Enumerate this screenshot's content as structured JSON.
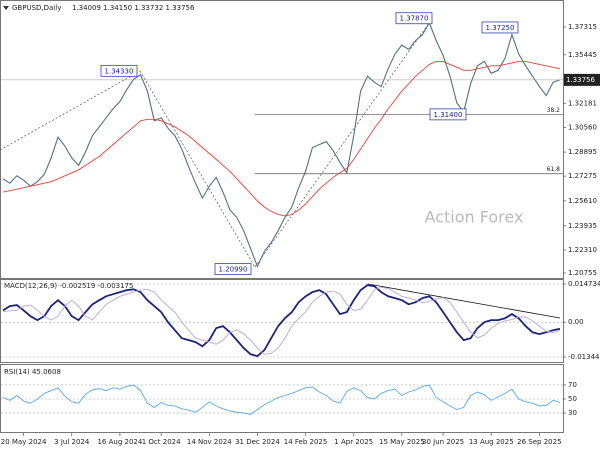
{
  "chart_data": [
    {
      "type": "line",
      "title": "GBPUSD,Daily",
      "subtitle": "1.34009 1.34150 1.33732 1.33756",
      "watermark": "Action Forex",
      "series": [
        {
          "color": "#4f7189",
          "values": [
            1.271,
            1.268,
            1.273,
            1.27,
            1.266,
            1.269,
            1.274,
            1.285,
            1.299,
            1.293,
            1.285,
            1.28,
            1.289,
            1.3,
            1.306,
            1.312,
            1.318,
            1.323,
            1.331,
            1.338,
            1.341,
            1.33,
            1.31,
            1.312,
            1.305,
            1.3,
            1.291,
            1.279,
            1.268,
            1.258,
            1.266,
            1.272,
            1.262,
            1.25,
            1.245,
            1.236,
            1.224,
            1.212,
            1.222,
            1.228,
            1.236,
            1.245,
            1.252,
            1.265,
            1.276,
            1.292,
            1.294,
            1.296,
            1.29,
            1.282,
            1.275,
            1.3,
            1.33,
            1.34,
            1.336,
            1.333,
            1.345,
            1.355,
            1.361,
            1.358,
            1.364,
            1.368,
            1.376,
            1.364,
            1.354,
            1.34,
            1.322,
            1.316,
            1.335,
            1.347,
            1.35,
            1.342,
            1.344,
            1.352,
            1.368,
            1.355,
            1.347,
            1.34,
            1.333,
            1.327,
            1.336,
            1.33756
          ]
        },
        {
          "color": "#e8413a",
          "values": [
            1.262,
            1.263,
            1.264,
            1.265,
            1.266,
            1.267,
            1.268,
            1.269,
            1.271,
            1.273,
            1.275,
            1.277,
            1.28,
            1.283,
            1.286,
            1.29,
            1.294,
            1.298,
            1.302,
            1.306,
            1.31,
            1.311,
            1.311,
            1.31,
            1.308,
            1.306,
            1.303,
            1.3,
            1.296,
            1.292,
            1.288,
            1.284,
            1.28,
            1.276,
            1.271,
            1.266,
            1.261,
            1.256,
            1.252,
            1.249,
            1.247,
            1.246,
            1.247,
            1.25,
            1.254,
            1.259,
            1.264,
            1.268,
            1.272,
            1.275,
            1.278,
            1.284,
            1.291,
            1.298,
            1.305,
            1.311,
            1.318,
            1.324,
            1.33,
            1.335,
            1.34,
            1.344,
            1.348,
            1.35,
            1.35,
            1.348,
            1.346,
            1.344,
            1.344,
            1.345,
            1.346,
            1.347,
            1.347,
            1.348,
            1.349,
            1.35,
            1.35,
            1.349,
            1.348,
            1.347,
            1.346,
            1.345
          ]
        }
      ],
      "ylim": [
        1.2042,
        1.3893
      ],
      "yticks": [
        1.37315,
        1.35445,
        1.32181,
        {
          "value": 1.3056,
          "label": "1.30560"
        },
        1.28895,
        1.27275,
        {
          "value": 1.2561,
          "label": "1.25610"
        },
        1.23935,
        {
          "value": 1.2231,
          "label": "1.22310"
        },
        1.20755
      ],
      "last_price": 1.33756,
      "annotations": [
        {
          "value": 1.3433,
          "label": "1.34330"
        },
        {
          "value": 1.3787,
          "label": "1.37870"
        },
        {
          "value": 1.3725,
          "label": "1.37250"
        },
        {
          "value": 1.314,
          "label": "1.31400"
        },
        {
          "value": 1.2099,
          "label": "1.20990"
        }
      ],
      "fib_levels": [
        38.2,
        61.8
      ],
      "grid": false
    },
    {
      "type": "line",
      "title": "MACD(12,26,9) -0.002519 -0.003175",
      "series": [
        {
          "color": "#1a237e",
          "values": [
            0.0046,
            0.0062,
            0.0066,
            0.0046,
            0.0023,
            0.0008,
            0.0023,
            0.0062,
            0.0085,
            0.0062,
            0.0023,
            0.0008,
            0.0039,
            0.0069,
            0.0085,
            0.01,
            0.0108,
            0.0116,
            0.0124,
            0.0127,
            0.0116,
            0.0085,
            0.0062,
            0.0039,
            0.0,
            -0.0031,
            -0.0062,
            -0.0069,
            -0.0077,
            -0.0093,
            -0.0069,
            -0.0023,
            -0.0015,
            -0.0039,
            -0.0069,
            -0.01,
            -0.0124,
            -0.0131,
            -0.0108,
            -0.0062,
            -0.0015,
            0.0015,
            0.0039,
            0.0077,
            0.01,
            0.0116,
            0.0124,
            0.0108,
            0.0069,
            0.0031,
            0.0039,
            0.0085,
            0.0124,
            0.0143,
            0.0139,
            0.0116,
            0.01,
            0.0093,
            0.0085,
            0.0069,
            0.0077,
            0.0093,
            0.01,
            0.0077,
            0.0039,
            0.0,
            -0.0039,
            -0.0069,
            -0.0062,
            -0.0023,
            0.0,
            0.0008,
            0.0008,
            0.0015,
            0.0031,
            0.0015,
            -0.0015,
            -0.0039,
            -0.0046,
            -0.0039,
            -0.0031,
            -0.002519
          ]
        },
        {
          "color": "#b9a6d9",
          "values": [
            0.004,
            0.0044,
            0.0046,
            0.0062,
            0.0066,
            0.0046,
            0.0023,
            0.0008,
            0.0023,
            0.0062,
            0.0085,
            0.0062,
            0.0023,
            0.0008,
            0.0039,
            0.0069,
            0.0085,
            0.01,
            0.0108,
            0.0116,
            0.0124,
            0.0127,
            0.0116,
            0.0085,
            0.0062,
            0.0039,
            0.0,
            -0.0031,
            -0.0062,
            -0.0069,
            -0.0077,
            -0.0085,
            -0.0069,
            -0.004,
            -0.003,
            -0.0045,
            -0.0069,
            -0.01,
            -0.0124,
            -0.012,
            -0.01,
            -0.0062,
            -0.0015,
            0.0015,
            0.0039,
            0.0077,
            0.01,
            0.0116,
            0.012,
            0.0108,
            0.0069,
            0.0045,
            0.005,
            0.0085,
            0.0124,
            0.0135,
            0.013,
            0.0116,
            0.01,
            0.0093,
            0.0085,
            0.0075,
            0.008,
            0.009,
            0.0095,
            0.0077,
            0.0039,
            0.0,
            -0.0039,
            -0.006,
            -0.005,
            -0.0023,
            -0.0005,
            0.0005,
            0.001,
            0.002,
            0.002,
            0.0005,
            -0.0015,
            -0.0035,
            -0.004,
            -0.003175
          ]
        }
      ],
      "ylim": [
        -0.01537,
        0.01628
      ],
      "yticks": [
        0.014734,
        {
          "value": 0,
          "label": "0.00"
        },
        -0.013442
      ],
      "grid": true
    },
    {
      "type": "line",
      "title": "RSI(14) 45.0608",
      "categories": [
        null,
        null,
        null,
        "20 May 2024",
        null,
        null,
        null,
        null,
        null,
        null,
        "3 Jul 2024",
        null,
        null,
        null,
        null,
        null,
        null,
        "16 Aug 2024",
        null,
        null,
        null,
        null,
        null,
        "1 Oct 2024",
        null,
        null,
        null,
        null,
        null,
        null,
        "14 Nov 2024",
        null,
        null,
        null,
        null,
        null,
        null,
        "31 Dec 2024",
        null,
        null,
        null,
        null,
        null,
        null,
        "14 Feb 2025",
        null,
        null,
        null,
        null,
        null,
        null,
        "1 Apr 2025",
        null,
        null,
        null,
        null,
        null,
        null,
        "15 May 2025",
        null,
        null,
        null,
        null,
        null,
        "30 Jun 2025",
        null,
        null,
        null,
        null,
        null,
        null,
        "13 Aug 2025",
        null,
        null,
        null,
        null,
        null,
        null,
        "26 Sep 2025",
        null,
        null,
        null
      ],
      "series": [
        {
          "color": "#5aa9e6",
          "values": [
            52,
            48,
            55,
            47,
            44,
            50,
            58,
            62,
            66,
            54,
            46,
            44,
            57,
            63,
            65,
            62,
            66,
            64,
            68,
            70,
            62,
            44,
            38,
            45,
            41,
            40,
            36,
            34,
            31,
            38,
            46,
            40,
            36,
            33,
            31,
            30,
            28,
            35,
            42,
            47,
            52,
            55,
            58,
            62,
            66,
            67,
            60,
            55,
            47,
            44,
            61,
            66,
            62,
            52,
            50,
            58,
            62,
            64,
            55,
            60,
            63,
            68,
            70,
            52,
            46,
            40,
            35,
            38,
            55,
            60,
            56,
            48,
            53,
            58,
            64,
            50,
            46,
            44,
            40,
            41,
            48,
            45.0608
          ]
        }
      ],
      "ylim": [
        3,
        97
      ],
      "yticks": [
        70,
        50,
        30
      ],
      "grid": true
    }
  ]
}
